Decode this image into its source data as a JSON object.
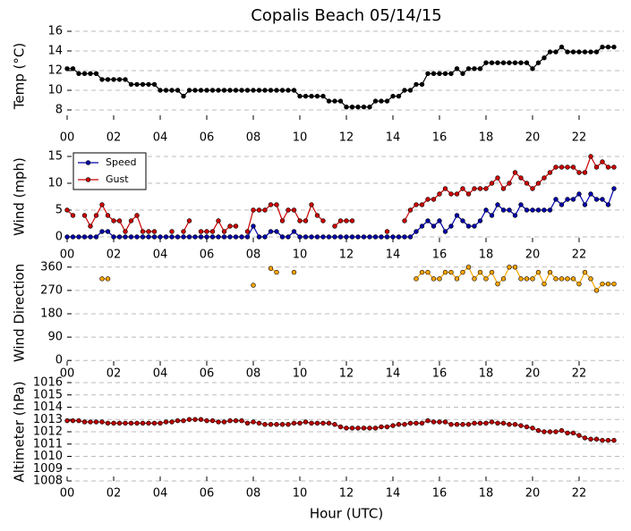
{
  "chart_data": [
    {
      "type": "line",
      "title": "Copalis Beach 05/14/15",
      "ylabel": "Temp (°C)",
      "grid": true,
      "xlim": [
        0,
        24
      ],
      "ylim": [
        7,
        16
      ],
      "yticks": [
        8,
        10,
        12,
        14,
        16
      ],
      "xticks": [
        {
          "value": 0,
          "label": "00"
        },
        {
          "value": 2,
          "label": "02"
        },
        {
          "value": 4,
          "label": "04"
        },
        {
          "value": 6,
          "label": "06"
        },
        {
          "value": 8,
          "label": "08"
        },
        {
          "value": 10,
          "label": "10"
        },
        {
          "value": 12,
          "label": "12"
        },
        {
          "value": 14,
          "label": "14"
        },
        {
          "value": 16,
          "label": "16"
        },
        {
          "value": 18,
          "label": "18"
        },
        {
          "value": 20,
          "label": "20"
        },
        {
          "value": 22,
          "label": "22"
        }
      ],
      "x": [
        0,
        0.25,
        0.5,
        0.75,
        1,
        1.25,
        1.5,
        1.75,
        2,
        2.25,
        2.5,
        2.75,
        3,
        3.25,
        3.5,
        3.75,
        4,
        4.25,
        4.5,
        4.75,
        5,
        5.25,
        5.5,
        5.75,
        6,
        6.25,
        6.5,
        6.75,
        7,
        7.25,
        7.5,
        7.75,
        8,
        8.25,
        8.5,
        8.75,
        9,
        9.25,
        9.5,
        9.75,
        10,
        10.25,
        10.5,
        10.75,
        11,
        11.25,
        11.5,
        11.75,
        12,
        12.25,
        12.5,
        12.75,
        13,
        13.25,
        13.5,
        13.75,
        14,
        14.25,
        14.5,
        14.75,
        15,
        15.25,
        15.5,
        15.75,
        16,
        16.25,
        16.5,
        16.75,
        17,
        17.25,
        17.5,
        17.75,
        18,
        18.25,
        18.5,
        18.75,
        19,
        19.25,
        19.5,
        19.75,
        20,
        20.25,
        20.5,
        20.75,
        21,
        21.25,
        21.5,
        21.75,
        22,
        22.25,
        22.5,
        22.75,
        23,
        23.25,
        23.5
      ],
      "series": [
        {
          "name": "Temp",
          "color": "#000000",
          "values": [
            12.2,
            12.2,
            11.7,
            11.7,
            11.7,
            11.7,
            11.1,
            11.1,
            11.1,
            11.1,
            11.1,
            10.6,
            10.6,
            10.6,
            10.6,
            10.6,
            10.0,
            10.0,
            10.0,
            10.0,
            9.4,
            10.0,
            10.0,
            10.0,
            10.0,
            10.0,
            10.0,
            10.0,
            10.0,
            10.0,
            10.0,
            10.0,
            10.0,
            10.0,
            10.0,
            10.0,
            10.0,
            10.0,
            10.0,
            10.0,
            9.4,
            9.4,
            9.4,
            9.4,
            9.4,
            8.9,
            8.9,
            8.9,
            8.3,
            8.3,
            8.3,
            8.3,
            8.3,
            8.9,
            8.9,
            8.9,
            9.4,
            9.4,
            10.0,
            10.0,
            10.6,
            10.6,
            11.7,
            11.7,
            11.7,
            11.7,
            11.7,
            12.2,
            11.7,
            12.2,
            12.2,
            12.2,
            12.8,
            12.8,
            12.8,
            12.8,
            12.8,
            12.8,
            12.8,
            12.8,
            12.2,
            12.8,
            13.3,
            13.9,
            13.9,
            14.4,
            13.9,
            13.9,
            13.9,
            13.9,
            13.9,
            13.9,
            14.4,
            14.4,
            14.4
          ]
        }
      ]
    },
    {
      "type": "line",
      "ylabel": "Wind (mph)",
      "grid": true,
      "legend": "upper left",
      "xlim": [
        0,
        24
      ],
      "ylim": [
        -1,
        16
      ],
      "yticks": [
        0,
        5,
        10,
        15
      ],
      "xticks": [
        {
          "value": 0,
          "label": "00"
        },
        {
          "value": 2,
          "label": "02"
        },
        {
          "value": 4,
          "label": "04"
        },
        {
          "value": 6,
          "label": "06"
        },
        {
          "value": 8,
          "label": "08"
        },
        {
          "value": 10,
          "label": "10"
        },
        {
          "value": 12,
          "label": "12"
        },
        {
          "value": 14,
          "label": "14"
        },
        {
          "value": 16,
          "label": "16"
        },
        {
          "value": 18,
          "label": "18"
        },
        {
          "value": 20,
          "label": "20"
        },
        {
          "value": 22,
          "label": "22"
        }
      ],
      "x": [
        0,
        0.25,
        0.5,
        0.75,
        1,
        1.25,
        1.5,
        1.75,
        2,
        2.25,
        2.5,
        2.75,
        3,
        3.25,
        3.5,
        3.75,
        4,
        4.25,
        4.5,
        4.75,
        5,
        5.25,
        5.5,
        5.75,
        6,
        6.25,
        6.5,
        6.75,
        7,
        7.25,
        7.5,
        7.75,
        8,
        8.25,
        8.5,
        8.75,
        9,
        9.25,
        9.5,
        9.75,
        10,
        10.25,
        10.5,
        10.75,
        11,
        11.25,
        11.5,
        11.75,
        12,
        12.25,
        12.5,
        12.75,
        13,
        13.25,
        13.5,
        13.75,
        14,
        14.25,
        14.5,
        14.75,
        15,
        15.25,
        15.5,
        15.75,
        16,
        16.25,
        16.5,
        16.75,
        17,
        17.25,
        17.5,
        17.75,
        18,
        18.25,
        18.5,
        18.75,
        19,
        19.25,
        19.5,
        19.75,
        20,
        20.25,
        20.5,
        20.75,
        21,
        21.25,
        21.5,
        21.75,
        22,
        22.25,
        22.5,
        22.75,
        23,
        23.25,
        23.5
      ],
      "series": [
        {
          "name": "Speed",
          "color": "#0000aa",
          "values": [
            0,
            0,
            0,
            0,
            0,
            0,
            1,
            1,
            0,
            0,
            0,
            0,
            0,
            0,
            0,
            0,
            0,
            0,
            0,
            0,
            0,
            0,
            0,
            0,
            0,
            0,
            0,
            0,
            0,
            0,
            0,
            0,
            2,
            0,
            0,
            1,
            1,
            0,
            0,
            1,
            0,
            0,
            0,
            0,
            0,
            0,
            0,
            0,
            0,
            0,
            0,
            0,
            0,
            0,
            0,
            0,
            0,
            0,
            0,
            0,
            1,
            2,
            3,
            2,
            3,
            1,
            2,
            4,
            3,
            2,
            2,
            3,
            5,
            4,
            6,
            5,
            5,
            4,
            6,
            5,
            5,
            5,
            5,
            5,
            7,
            6,
            7,
            7,
            8,
            6,
            8,
            7,
            7,
            6,
            9
          ]
        },
        {
          "name": "Gust",
          "color": "#cc0000",
          "values": [
            5,
            4,
            null,
            4,
            2,
            4,
            6,
            4,
            3,
            3,
            1,
            3,
            4,
            1,
            1,
            1,
            null,
            null,
            1,
            null,
            1,
            3,
            null,
            1,
            1,
            1,
            3,
            1,
            2,
            2,
            null,
            1,
            5,
            5,
            5,
            6,
            6,
            3,
            5,
            5,
            3,
            3,
            6,
            4,
            3,
            null,
            2,
            3,
            3,
            3,
            null,
            null,
            null,
            null,
            null,
            1,
            null,
            null,
            3,
            5,
            6,
            6,
            7,
            7,
            8,
            9,
            8,
            8,
            9,
            8,
            9,
            9,
            9,
            10,
            11,
            9,
            10,
            12,
            11,
            10,
            9,
            10,
            11,
            12,
            13,
            13,
            13,
            13,
            12,
            12,
            15,
            13,
            14,
            13,
            13
          ]
        }
      ]
    },
    {
      "type": "scatter",
      "ylabel": "Wind Direction",
      "grid": true,
      "xlim": [
        0,
        24
      ],
      "ylim": [
        -20,
        380
      ],
      "yticks": [
        0,
        90,
        180,
        270,
        360
      ],
      "xticks": [
        {
          "value": 0,
          "label": "00"
        },
        {
          "value": 2,
          "label": "02"
        },
        {
          "value": 4,
          "label": "04"
        },
        {
          "value": 6,
          "label": "06"
        },
        {
          "value": 8,
          "label": "08"
        },
        {
          "value": 10,
          "label": "10"
        },
        {
          "value": 12,
          "label": "12"
        },
        {
          "value": 14,
          "label": "14"
        },
        {
          "value": 16,
          "label": "16"
        },
        {
          "value": 18,
          "label": "18"
        },
        {
          "value": 20,
          "label": "20"
        },
        {
          "value": 22,
          "label": "22"
        }
      ],
      "x": [
        0,
        0.25,
        0.5,
        0.75,
        1,
        1.25,
        1.5,
        1.75,
        2,
        2.25,
        2.5,
        2.75,
        3,
        3.25,
        3.5,
        3.75,
        4,
        4.25,
        4.5,
        4.75,
        5,
        5.25,
        5.5,
        5.75,
        6,
        6.25,
        6.5,
        6.75,
        7,
        7.25,
        7.5,
        7.75,
        8,
        8.25,
        8.5,
        8.75,
        9,
        9.25,
        9.5,
        9.75,
        10,
        10.25,
        10.5,
        10.75,
        11,
        11.25,
        11.5,
        11.75,
        12,
        12.25,
        12.5,
        12.75,
        13,
        13.25,
        13.5,
        13.75,
        14,
        14.25,
        14.5,
        14.75,
        15,
        15.25,
        15.5,
        15.75,
        16,
        16.25,
        16.5,
        16.75,
        17,
        17.25,
        17.5,
        17.75,
        18,
        18.25,
        18.5,
        18.75,
        19,
        19.25,
        19.5,
        19.75,
        20,
        20.25,
        20.5,
        20.75,
        21,
        21.25,
        21.5,
        21.75,
        22,
        22.25,
        22.5,
        22.75,
        23,
        23.25,
        23.5
      ],
      "series": [
        {
          "name": "Direction",
          "color": "#ffa500",
          "values": [
            null,
            null,
            null,
            null,
            null,
            null,
            315,
            315,
            null,
            null,
            null,
            null,
            null,
            null,
            null,
            null,
            null,
            null,
            null,
            null,
            null,
            null,
            null,
            null,
            null,
            null,
            null,
            null,
            null,
            null,
            null,
            null,
            290,
            null,
            null,
            355,
            340,
            null,
            null,
            340,
            null,
            null,
            null,
            null,
            null,
            null,
            null,
            null,
            null,
            null,
            null,
            null,
            null,
            null,
            null,
            null,
            null,
            null,
            null,
            null,
            315,
            340,
            340,
            315,
            315,
            340,
            340,
            315,
            340,
            360,
            315,
            340,
            315,
            340,
            295,
            315,
            360,
            360,
            315,
            315,
            315,
            340,
            295,
            340,
            315,
            315,
            315,
            315,
            295,
            340,
            315,
            270,
            295,
            295,
            295
          ]
        }
      ]
    },
    {
      "type": "line",
      "ylabel": "Altimeter (hPa)",
      "xlabel": "Hour (UTC)",
      "grid": true,
      "xlim": [
        0,
        24
      ],
      "ylim": [
        1008,
        1016
      ],
      "yticks": [
        1008,
        1009,
        1010,
        1011,
        1012,
        1013,
        1014,
        1015,
        1016
      ],
      "xticks": [
        {
          "value": 0,
          "label": "00"
        },
        {
          "value": 2,
          "label": "02"
        },
        {
          "value": 4,
          "label": "04"
        },
        {
          "value": 6,
          "label": "06"
        },
        {
          "value": 8,
          "label": "08"
        },
        {
          "value": 10,
          "label": "10"
        },
        {
          "value": 12,
          "label": "12"
        },
        {
          "value": 14,
          "label": "14"
        },
        {
          "value": 16,
          "label": "16"
        },
        {
          "value": 18,
          "label": "18"
        },
        {
          "value": 20,
          "label": "20"
        },
        {
          "value": 22,
          "label": "22"
        }
      ],
      "x": [
        0,
        0.25,
        0.5,
        0.75,
        1,
        1.25,
        1.5,
        1.75,
        2,
        2.25,
        2.5,
        2.75,
        3,
        3.25,
        3.5,
        3.75,
        4,
        4.25,
        4.5,
        4.75,
        5,
        5.25,
        5.5,
        5.75,
        6,
        6.25,
        6.5,
        6.75,
        7,
        7.25,
        7.5,
        7.75,
        8,
        8.25,
        8.5,
        8.75,
        9,
        9.25,
        9.5,
        9.75,
        10,
        10.25,
        10.5,
        10.75,
        11,
        11.25,
        11.5,
        11.75,
        12,
        12.25,
        12.5,
        12.75,
        13,
        13.25,
        13.5,
        13.75,
        14,
        14.25,
        14.5,
        14.75,
        15,
        15.25,
        15.5,
        15.75,
        16,
        16.25,
        16.5,
        16.75,
        17,
        17.25,
        17.5,
        17.75,
        18,
        18.25,
        18.5,
        18.75,
        19,
        19.25,
        19.5,
        19.75,
        20,
        20.25,
        20.5,
        20.75,
        21,
        21.25,
        21.5,
        21.75,
        22,
        22.25,
        22.5,
        22.75,
        23,
        23.25,
        23.5
      ],
      "series": [
        {
          "name": "Altimeter",
          "color": "#bb0000",
          "values": [
            1012.9,
            1012.9,
            1012.9,
            1012.8,
            1012.8,
            1012.8,
            1012.8,
            1012.7,
            1012.7,
            1012.7,
            1012.7,
            1012.7,
            1012.7,
            1012.7,
            1012.7,
            1012.7,
            1012.7,
            1012.8,
            1012.8,
            1012.9,
            1012.9,
            1013.0,
            1013.0,
            1013.0,
            1012.9,
            1012.9,
            1012.8,
            1012.8,
            1012.9,
            1012.9,
            1012.9,
            1012.7,
            1012.8,
            1012.7,
            1012.6,
            1012.6,
            1012.6,
            1012.6,
            1012.6,
            1012.7,
            1012.7,
            1012.8,
            1012.7,
            1012.7,
            1012.7,
            1012.7,
            1012.6,
            1012.4,
            1012.3,
            1012.3,
            1012.3,
            1012.3,
            1012.3,
            1012.3,
            1012.4,
            1012.4,
            1012.5,
            1012.6,
            1012.6,
            1012.7,
            1012.7,
            1012.7,
            1012.9,
            1012.8,
            1012.8,
            1012.8,
            1012.6,
            1012.6,
            1012.6,
            1012.6,
            1012.7,
            1012.7,
            1012.7,
            1012.8,
            1012.7,
            1012.7,
            1012.6,
            1012.6,
            1012.5,
            1012.4,
            1012.3,
            1012.1,
            1012.0,
            1012.0,
            1012.0,
            1012.1,
            1011.9,
            1011.9,
            1011.7,
            1011.5,
            1011.4,
            1011.4,
            1011.3,
            1011.3,
            1011.3
          ]
        }
      ]
    }
  ]
}
